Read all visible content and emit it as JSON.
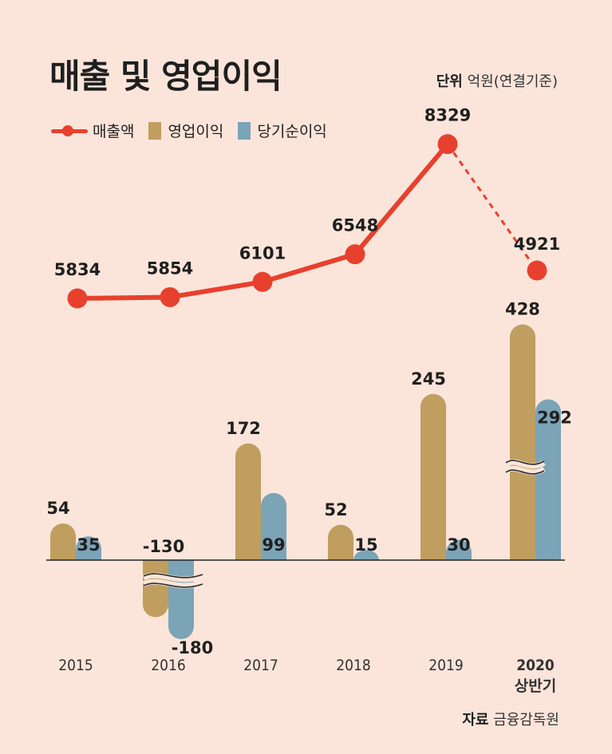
{
  "header": {
    "title": "매출 및 영업이익",
    "unit_label": "단위",
    "unit_value": "억원(연결기준)"
  },
  "legend": {
    "revenue": "매출액",
    "operating": "영업이익",
    "net": "당기순이익"
  },
  "source": {
    "label": "자료",
    "value": "금융감독원"
  },
  "colors": {
    "revenue": "#e8402e",
    "operating": "#bf9e5f",
    "net": "#7ba4b7",
    "background": "#fbe5da"
  },
  "chart_data": {
    "type": "bar+line",
    "title": "매출 및 영업이익",
    "categories": [
      "2015",
      "2016",
      "2017",
      "2018",
      "2019",
      "2020"
    ],
    "category_sublabels": [
      "",
      "",
      "",
      "",
      "",
      "상반기"
    ],
    "series": [
      {
        "name": "매출액",
        "kind": "line",
        "values": [
          5834,
          5854,
          6101,
          6548,
          8329,
          4921
        ]
      },
      {
        "name": "영업이익",
        "kind": "bar",
        "values": [
          54,
          -130,
          172,
          52,
          245,
          428
        ]
      },
      {
        "name": "당기순이익",
        "kind": "bar",
        "values": [
          35,
          -180,
          99,
          15,
          30,
          292
        ]
      }
    ],
    "axis_breaks": [
      "2016 bars",
      "2020 bars"
    ],
    "last_segment_dashed": true,
    "legend_position": "top-left",
    "grid": false
  }
}
